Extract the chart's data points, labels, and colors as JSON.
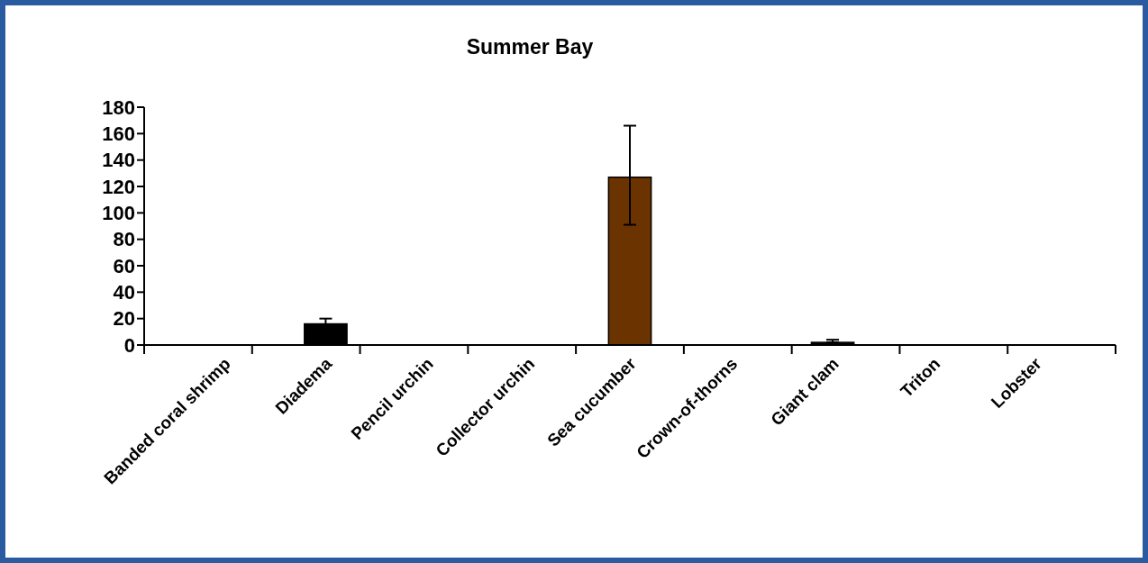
{
  "chart_data": {
    "type": "bar",
    "title": "Summer Bay",
    "categories": [
      "Banded coral shrimp",
      "Diadema",
      "Pencil urchin",
      "Collector urchin",
      "Sea cucumber",
      "Crown-of-thorns",
      "Giant clam",
      "Triton",
      "Lobster"
    ],
    "values": [
      0,
      16,
      0,
      0,
      127,
      0,
      2,
      0,
      0
    ],
    "colors": [
      "#000000",
      "#000000",
      "#000000",
      "#000000",
      "#6b3300",
      "#000000",
      "#000000",
      "#000000",
      "#000000"
    ],
    "errors": [
      null,
      4,
      null,
      null,
      [
        91,
        166
      ],
      null,
      [
        2,
        4
      ],
      null,
      null
    ],
    "ylim": [
      0,
      180
    ],
    "yticks": [
      0,
      20,
      40,
      60,
      80,
      100,
      120,
      140,
      160,
      180
    ],
    "grid": false
  }
}
